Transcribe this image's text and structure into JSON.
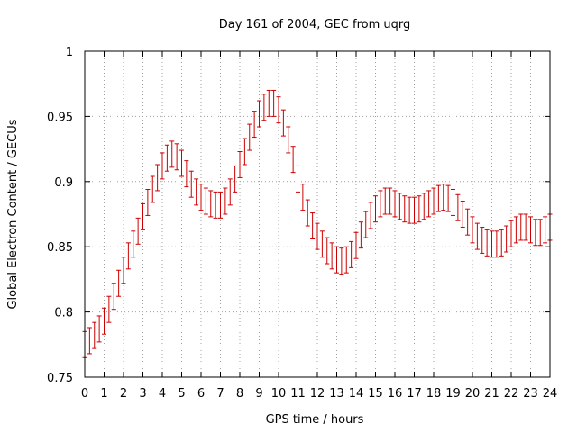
{
  "chart_data": {
    "type": "scatter",
    "title": "Day 161 of 2004, GEC from uqrg",
    "xlabel": "GPS time / hours",
    "ylabel": "Global Electron Content / GECUs",
    "xlim": [
      0,
      24
    ],
    "ylim": [
      0.75,
      1.0
    ],
    "xticks": [
      0,
      1,
      2,
      3,
      4,
      5,
      6,
      7,
      8,
      9,
      10,
      11,
      12,
      13,
      14,
      15,
      16,
      17,
      18,
      19,
      20,
      21,
      22,
      23,
      24
    ],
    "yticks": [
      0.75,
      0.8,
      0.85,
      0.9,
      0.95,
      1.0
    ],
    "ytick_labels": [
      "0.75",
      "0.8",
      "0.85",
      "0.9",
      "0.95",
      "1"
    ],
    "grid": true,
    "series": [
      {
        "name": "GEC",
        "color": "#cc0000",
        "error": 0.01,
        "points": [
          [
            0.0,
            0.775
          ],
          [
            0.25,
            0.778
          ],
          [
            0.5,
            0.782
          ],
          [
            0.75,
            0.787
          ],
          [
            1.0,
            0.793
          ],
          [
            1.25,
            0.802
          ],
          [
            1.5,
            0.812
          ],
          [
            1.75,
            0.822
          ],
          [
            2.0,
            0.832
          ],
          [
            2.25,
            0.843
          ],
          [
            2.5,
            0.852
          ],
          [
            2.75,
            0.862
          ],
          [
            3.0,
            0.873
          ],
          [
            3.25,
            0.884
          ],
          [
            3.5,
            0.894
          ],
          [
            3.75,
            0.903
          ],
          [
            4.0,
            0.912
          ],
          [
            4.25,
            0.918
          ],
          [
            4.5,
            0.921
          ],
          [
            4.75,
            0.919
          ],
          [
            5.0,
            0.914
          ],
          [
            5.25,
            0.906
          ],
          [
            5.5,
            0.898
          ],
          [
            5.75,
            0.892
          ],
          [
            6.0,
            0.888
          ],
          [
            6.25,
            0.885
          ],
          [
            6.5,
            0.883
          ],
          [
            6.75,
            0.882
          ],
          [
            7.0,
            0.882
          ],
          [
            7.25,
            0.885
          ],
          [
            7.5,
            0.892
          ],
          [
            7.75,
            0.902
          ],
          [
            8.0,
            0.913
          ],
          [
            8.25,
            0.923
          ],
          [
            8.5,
            0.934
          ],
          [
            8.75,
            0.944
          ],
          [
            9.0,
            0.952
          ],
          [
            9.25,
            0.957
          ],
          [
            9.5,
            0.96
          ],
          [
            9.75,
            0.96
          ],
          [
            10.0,
            0.955
          ],
          [
            10.25,
            0.945
          ],
          [
            10.5,
            0.932
          ],
          [
            10.75,
            0.917
          ],
          [
            11.0,
            0.902
          ],
          [
            11.25,
            0.888
          ],
          [
            11.5,
            0.876
          ],
          [
            11.75,
            0.866
          ],
          [
            12.0,
            0.858
          ],
          [
            12.25,
            0.852
          ],
          [
            12.5,
            0.847
          ],
          [
            12.75,
            0.843
          ],
          [
            13.0,
            0.84
          ],
          [
            13.25,
            0.839
          ],
          [
            13.5,
            0.84
          ],
          [
            13.75,
            0.844
          ],
          [
            14.0,
            0.851
          ],
          [
            14.25,
            0.859
          ],
          [
            14.5,
            0.867
          ],
          [
            14.75,
            0.874
          ],
          [
            15.0,
            0.879
          ],
          [
            15.25,
            0.883
          ],
          [
            15.5,
            0.885
          ],
          [
            15.75,
            0.885
          ],
          [
            16.0,
            0.883
          ],
          [
            16.25,
            0.881
          ],
          [
            16.5,
            0.879
          ],
          [
            16.75,
            0.878
          ],
          [
            17.0,
            0.878
          ],
          [
            17.25,
            0.879
          ],
          [
            17.5,
            0.881
          ],
          [
            17.75,
            0.883
          ],
          [
            18.0,
            0.885
          ],
          [
            18.25,
            0.887
          ],
          [
            18.5,
            0.888
          ],
          [
            18.75,
            0.887
          ],
          [
            19.0,
            0.884
          ],
          [
            19.25,
            0.88
          ],
          [
            19.5,
            0.875
          ],
          [
            19.75,
            0.869
          ],
          [
            20.0,
            0.863
          ],
          [
            20.25,
            0.858
          ],
          [
            20.5,
            0.855
          ],
          [
            20.75,
            0.853
          ],
          [
            21.0,
            0.852
          ],
          [
            21.25,
            0.852
          ],
          [
            21.5,
            0.853
          ],
          [
            21.75,
            0.856
          ],
          [
            22.0,
            0.86
          ],
          [
            22.25,
            0.863
          ],
          [
            22.5,
            0.865
          ],
          [
            22.75,
            0.865
          ],
          [
            23.0,
            0.863
          ],
          [
            23.25,
            0.861
          ],
          [
            23.5,
            0.861
          ],
          [
            23.75,
            0.863
          ],
          [
            24.0,
            0.865
          ]
        ]
      }
    ]
  }
}
